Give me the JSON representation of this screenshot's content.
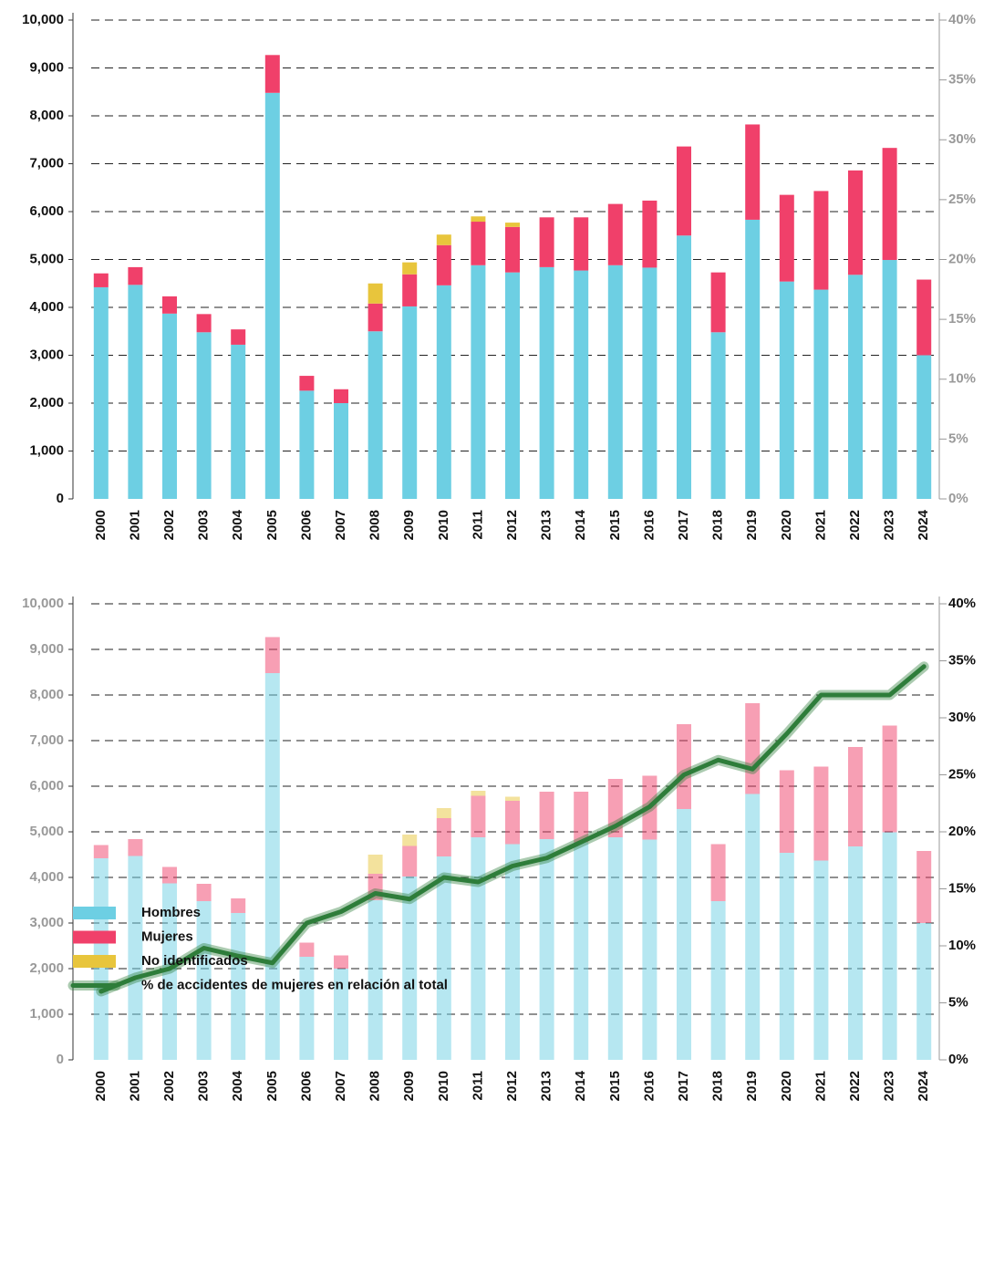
{
  "chart_data": [
    {
      "type": "bar",
      "stacked": true,
      "categories": [
        "2000",
        "2001",
        "2002",
        "2003",
        "2004",
        "2005",
        "2006",
        "2007",
        "2008",
        "2009",
        "2010",
        "2011",
        "2012",
        "2013",
        "2014",
        "2015",
        "2016",
        "2017",
        "2018",
        "2019",
        "2020",
        "2021",
        "2022",
        "2023",
        "2024"
      ],
      "series": [
        {
          "name": "Hombres",
          "color": "#6dcfe3",
          "values": [
            4420,
            4470,
            3870,
            3480,
            3220,
            8480,
            2260,
            2000,
            3500,
            4020,
            4460,
            4880,
            4730,
            4840,
            4770,
            4880,
            4830,
            5500,
            3480,
            5830,
            4540,
            4370,
            4680,
            4990,
            3000
          ]
        },
        {
          "name": "Mujeres",
          "color": "#f0406a",
          "values": [
            290,
            370,
            360,
            380,
            320,
            790,
            310,
            290,
            580,
            670,
            840,
            910,
            950,
            1040,
            1110,
            1280,
            1400,
            1860,
            1250,
            1990,
            1810,
            2060,
            2180,
            2340,
            1580
          ]
        },
        {
          "name": "No identificados",
          "color": "#e8c53c",
          "values": [
            0,
            0,
            0,
            0,
            0,
            0,
            0,
            0,
            420,
            250,
            220,
            110,
            90,
            0,
            0,
            0,
            0,
            0,
            0,
            0,
            0,
            0,
            0,
            0,
            0
          ]
        }
      ],
      "ylim": [
        0,
        10000
      ],
      "yticks": [
        0,
        {
          "value": 1000,
          "label": "1,000"
        },
        {
          "value": 2000,
          "label": "2,000"
        },
        {
          "value": 3000,
          "label": "3,000"
        },
        {
          "value": 4000,
          "label": "4,000"
        },
        {
          "value": 5000,
          "label": "5,000"
        },
        {
          "value": 6000,
          "label": "6,000"
        },
        {
          "value": 7000,
          "label": "7,000"
        },
        {
          "value": 8000,
          "label": "8,000"
        },
        {
          "value": 9000,
          "label": "9,000"
        },
        {
          "value": 10000,
          "label": "10,000"
        }
      ],
      "y2lim": [
        0,
        40
      ],
      "y2ticks": [
        {
          "value": 0,
          "label": "0%"
        },
        {
          "value": 5,
          "label": "5%"
        },
        {
          "value": 10,
          "label": "10%"
        },
        {
          "value": 15,
          "label": "15%"
        },
        {
          "value": 20,
          "label": "20%"
        },
        {
          "value": 25,
          "label": "25%"
        },
        {
          "value": 30,
          "label": "30%"
        },
        {
          "value": 35,
          "label": "35%"
        },
        {
          "value": 40,
          "label": "40%"
        }
      ],
      "grid": true,
      "bar_opacity": 1
    },
    {
      "type": "bar",
      "stacked": true,
      "categories": [
        "2000",
        "2001",
        "2002",
        "2003",
        "2004",
        "2005",
        "2006",
        "2007",
        "2008",
        "2009",
        "2010",
        "2011",
        "2012",
        "2013",
        "2014",
        "2015",
        "2016",
        "2017",
        "2018",
        "2019",
        "2020",
        "2021",
        "2022",
        "2023",
        "2024"
      ],
      "series": [
        {
          "name": "Hombres",
          "color": "#6dcfe3",
          "values": [
            4420,
            4470,
            3870,
            3480,
            3220,
            8480,
            2260,
            2000,
            3500,
            4020,
            4460,
            4880,
            4730,
            4840,
            4770,
            4880,
            4830,
            5500,
            3480,
            5830,
            4540,
            4370,
            4680,
            4990,
            3000
          ]
        },
        {
          "name": "Mujeres",
          "color": "#f0406a",
          "values": [
            290,
            370,
            360,
            380,
            320,
            790,
            310,
            290,
            580,
            670,
            840,
            910,
            950,
            1040,
            1110,
            1280,
            1400,
            1860,
            1250,
            1990,
            1810,
            2060,
            2180,
            2340,
            1580
          ]
        },
        {
          "name": "No identificados",
          "color": "#e8c53c",
          "values": [
            0,
            0,
            0,
            0,
            0,
            0,
            0,
            0,
            420,
            250,
            220,
            110,
            90,
            0,
            0,
            0,
            0,
            0,
            0,
            0,
            0,
            0,
            0,
            0,
            0
          ]
        },
        {
          "name": "% de accidentes de mujeres en relación al total",
          "color": "#2e7d3a",
          "type": "line",
          "axis": "y2",
          "values": [
            6,
            7.2,
            8,
            9.8,
            9.1,
            8.5,
            12,
            13,
            14.6,
            14.1,
            16,
            15.6,
            17,
            17.7,
            19.1,
            20.5,
            22.2,
            25,
            26.3,
            25.5,
            28.6,
            32,
            32,
            32,
            34.5
          ]
        }
      ],
      "ylim": [
        0,
        10000
      ],
      "yticks": [
        0,
        {
          "value": 1000,
          "label": "1,000"
        },
        {
          "value": 2000,
          "label": "2,000"
        },
        {
          "value": 3000,
          "label": "3,000"
        },
        {
          "value": 4000,
          "label": "4,000"
        },
        {
          "value": 5000,
          "label": "5,000"
        },
        {
          "value": 6000,
          "label": "6,000"
        },
        {
          "value": 7000,
          "label": "7,000"
        },
        {
          "value": 8000,
          "label": "8,000"
        },
        {
          "value": 9000,
          "label": "9,000"
        },
        {
          "value": 10000,
          "label": "10,000"
        }
      ],
      "y2lim": [
        0,
        40
      ],
      "y2ticks": [
        {
          "value": 0,
          "label": "0%"
        },
        {
          "value": 5,
          "label": "5%"
        },
        {
          "value": 10,
          "label": "10%"
        },
        {
          "value": 15,
          "label": "15%"
        },
        {
          "value": 20,
          "label": "20%"
        },
        {
          "value": 25,
          "label": "25%"
        },
        {
          "value": 30,
          "label": "30%"
        },
        {
          "value": 35,
          "label": "35%"
        },
        {
          "value": 40,
          "label": "40%"
        }
      ],
      "grid": true,
      "bar_opacity": 0.5,
      "legend": "bottom-left"
    }
  ]
}
